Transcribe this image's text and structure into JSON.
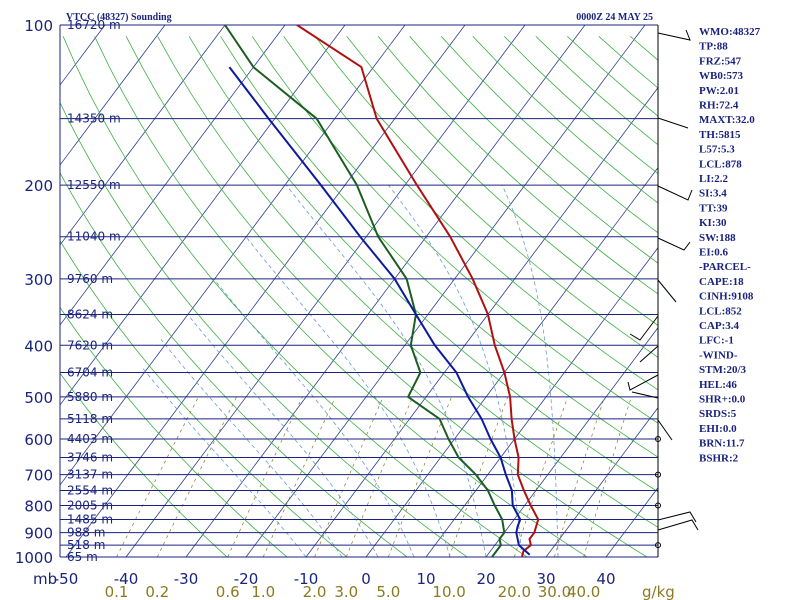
{
  "header": {
    "station": "VTCC (48327) Sounding",
    "time": "0000Z 24 MAY 25"
  },
  "axes": {
    "p_unit": "mb",
    "mix_unit": "g/kg",
    "p_ticks": [
      "100",
      "200",
      "300",
      "400",
      "500",
      "600",
      "700",
      "800",
      "900",
      "1000"
    ],
    "p_tick_values": [
      100,
      200,
      300,
      400,
      500,
      600,
      700,
      800,
      900,
      1000
    ],
    "t_ticks": [
      "-50",
      "-40",
      "-30",
      "-20",
      "-10",
      "0",
      "10",
      "20",
      "30",
      "40"
    ],
    "t_tick_values": [
      -50,
      -40,
      -30,
      -20,
      -10,
      0,
      10,
      20,
      30,
      40
    ],
    "mix_ticks": [
      "0.1",
      "0.2",
      "0.6",
      "1.0",
      "2.0",
      "3.0",
      "5.0",
      "10.0",
      "20.0",
      "30.0",
      "40.0"
    ],
    "mix_tick_values": [
      0.1,
      0.2,
      0.6,
      1.0,
      2.0,
      3.0,
      5.0,
      10.0,
      20.0,
      30.0,
      40.0
    ]
  },
  "heights": [
    {
      "p": 100,
      "label": "16720 m"
    },
    {
      "p": 150,
      "label": "14350 m"
    },
    {
      "p": 200,
      "label": "12550 m"
    },
    {
      "p": 250,
      "label": "11040 m"
    },
    {
      "p": 300,
      "label": "9760 m"
    },
    {
      "p": 350,
      "label": "8624 m"
    },
    {
      "p": 400,
      "label": "7620 m"
    },
    {
      "p": 450,
      "label": "6704 m"
    },
    {
      "p": 500,
      "label": "5880 m"
    },
    {
      "p": 550,
      "label": "5118 m"
    },
    {
      "p": 600,
      "label": "4403 m"
    },
    {
      "p": 650,
      "label": "3746 m"
    },
    {
      "p": 700,
      "label": "3137 m"
    },
    {
      "p": 750,
      "label": "2554 m"
    },
    {
      "p": 800,
      "label": "2005 m"
    },
    {
      "p": 850,
      "label": "1485 m"
    },
    {
      "p": 900,
      "label": "988 m"
    },
    {
      "p": 950,
      "label": "518 m"
    },
    {
      "p": 1000,
      "label": "65 m"
    }
  ],
  "indices": [
    "WMO:48327",
    "TP:88",
    "FRZ:547",
    "WB0:573",
    "PW:2.01",
    "RH:72.4",
    "MAXT:32.0",
    "TH:5815",
    "L57:5.3",
    "LCL:878",
    "LI:2.2",
    "SI:3.4",
    "TT:39",
    "KI:30",
    "SW:188",
    "EI:0.6",
    "-PARCEL-",
    "CAPE:18",
    "CINH:9108",
    "LCL:852",
    "CAP:3.4",
    "LFC:-1",
    "-WIND-",
    "STM:20/3",
    "HEL:46",
    "SHR+:0.0",
    "SRDS:5",
    "EHI:0.0",
    "BRN:11.7",
    "BSHR:2"
  ],
  "colors": {
    "temperature": "#b01010",
    "dewpoint": "#1b5e20",
    "parcel": "#0d1a9e",
    "isobar": "#1a237e",
    "isotherm": "#2c3e8f",
    "dry_adiabat": "#3cb043",
    "moist_adiabat": "#6b9bd1",
    "mixing_ratio": "#8a7a20"
  },
  "chart_data": {
    "type": "skew-t",
    "x_axis": "temperature (C), skewed",
    "y_axis": "pressure (mb), log scale",
    "ylim": [
      100,
      1000
    ],
    "xlim_bottom": [
      -50,
      50
    ],
    "series": [
      {
        "key": "temperature",
        "points": [
          [
            1000,
            26
          ],
          [
            975,
            25.5
          ],
          [
            950,
            26
          ],
          [
            925,
            25
          ],
          [
            900,
            25
          ],
          [
            850,
            24
          ],
          [
            800,
            21
          ],
          [
            750,
            18
          ],
          [
            700,
            15
          ],
          [
            650,
            13
          ],
          [
            600,
            10
          ],
          [
            550,
            7
          ],
          [
            500,
            4
          ],
          [
            450,
            0
          ],
          [
            400,
            -5
          ],
          [
            350,
            -10
          ],
          [
            300,
            -17
          ],
          [
            250,
            -26
          ],
          [
            200,
            -38
          ],
          [
            150,
            -53
          ],
          [
            120,
            -62
          ],
          [
            100,
            -78
          ]
        ]
      },
      {
        "key": "dewpoint",
        "points": [
          [
            1000,
            21
          ],
          [
            950,
            21
          ],
          [
            925,
            20
          ],
          [
            900,
            20
          ],
          [
            850,
            18
          ],
          [
            800,
            15
          ],
          [
            750,
            12
          ],
          [
            700,
            8
          ],
          [
            650,
            3
          ],
          [
            600,
            -1
          ],
          [
            550,
            -5
          ],
          [
            500,
            -13
          ],
          [
            450,
            -14
          ],
          [
            400,
            -19
          ],
          [
            350,
            -22
          ],
          [
            300,
            -28
          ],
          [
            250,
            -38
          ],
          [
            200,
            -48
          ],
          [
            150,
            -63
          ],
          [
            120,
            -80
          ],
          [
            100,
            -90
          ]
        ]
      },
      {
        "key": "parcel",
        "points": [
          [
            990,
            27
          ],
          [
            950,
            24
          ],
          [
            900,
            22
          ],
          [
            878,
            21.5
          ],
          [
            850,
            21
          ],
          [
            800,
            18
          ],
          [
            750,
            16
          ],
          [
            700,
            13
          ],
          [
            650,
            10
          ],
          [
            600,
            6
          ],
          [
            550,
            2
          ],
          [
            500,
            -3
          ],
          [
            450,
            -8
          ],
          [
            400,
            -15
          ],
          [
            350,
            -22
          ],
          [
            300,
            -30
          ],
          [
            250,
            -41
          ],
          [
            200,
            -54
          ],
          [
            150,
            -71
          ],
          [
            120,
            -84
          ]
        ]
      }
    ]
  }
}
